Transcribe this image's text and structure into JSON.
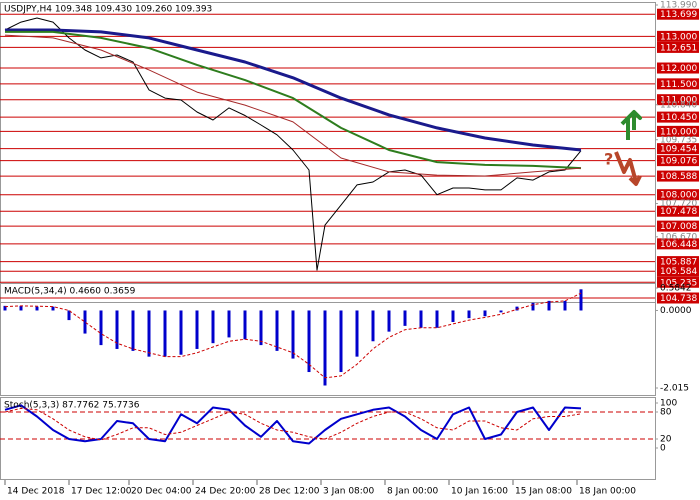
{
  "chart_data": [
    {
      "type": "line",
      "title": "USDJPY,H4 109.348 109.430 109.260 109.393",
      "xlim": [
        -1.25,
        162.5
      ],
      "ylim": [
        104.738,
        113.99
      ],
      "yticks": [
        {
          "value": 113.99,
          "label": "113.990"
        },
        {
          "value": 110.84,
          "label": "110.840"
        },
        109.735,
        {
          "value": 107.72,
          "label": "107.720"
        },
        {
          "value": 106.67,
          "label": "106.670"
        }
      ],
      "levels": [
        113.699,
        {
          "value": 113,
          "label": "113.000"
        },
        112.651,
        {
          "value": 112,
          "label": "112.000"
        },
        {
          "value": 111.5,
          "label": "111.500"
        },
        {
          "value": 111,
          "label": "111.000"
        },
        {
          "value": 110.45,
          "label": "110.450"
        },
        {
          "value": 110,
          "label": "110.000"
        },
        109.454,
        109.076,
        108.588,
        {
          "value": 108,
          "label": "108.000"
        },
        107.478,
        107.008,
        106.448,
        105.887,
        105.584,
        105.235,
        104.738
      ],
      "level_color": "#cc0000",
      "series": [
        {
          "type": "line",
          "color": "#000000",
          "width": 1,
          "x": [
            0,
            4,
            8,
            12,
            16,
            20,
            24,
            28,
            32,
            36,
            40,
            44,
            48,
            52,
            56,
            60,
            64,
            68,
            72,
            76,
            78,
            80,
            84,
            88,
            92,
            96,
            100,
            104,
            108,
            112,
            116,
            120,
            124,
            128,
            132,
            136,
            140,
            144
          ],
          "values": [
            113.2,
            113.45,
            113.58,
            113.45,
            112.95,
            112.57,
            112.32,
            112.41,
            112.19,
            111.31,
            111.05,
            110.99,
            110.61,
            110.36,
            110.74,
            110.5,
            110.2,
            109.89,
            109.41,
            108.78,
            105.62,
            107.04,
            107.67,
            108.31,
            108.4,
            108.72,
            108.78,
            108.62,
            108.0,
            108.21,
            108.21,
            108.15,
            108.15,
            108.53,
            108.46,
            108.72,
            108.78,
            109.39
          ]
        },
        {
          "type": "line",
          "color": "#1a1a8c",
          "width": 3,
          "x": [
            0,
            12,
            24,
            36,
            48,
            60,
            72,
            84,
            96,
            108,
            120,
            132,
            144
          ],
          "values": [
            113.2,
            113.2,
            113.14,
            112.95,
            112.57,
            112.19,
            111.69,
            111.05,
            110.52,
            110.11,
            109.79,
            109.57,
            109.41
          ]
        },
        {
          "type": "line",
          "color": "#2e7d1e",
          "width": 2,
          "x": [
            0,
            12,
            24,
            36,
            48,
            60,
            72,
            84,
            96,
            108,
            120,
            132,
            144
          ],
          "values": [
            113.14,
            113.14,
            112.95,
            112.63,
            112.1,
            111.62,
            111.05,
            110.11,
            109.41,
            109.03,
            108.94,
            108.91,
            108.84
          ]
        },
        {
          "type": "line",
          "color": "#a52a2a",
          "width": 1,
          "x": [
            0,
            12,
            24,
            36,
            48,
            60,
            72,
            84,
            96,
            108,
            120,
            132,
            144
          ],
          "values": [
            113.04,
            112.95,
            112.57,
            111.94,
            111.24,
            110.83,
            110.3,
            109.16,
            108.72,
            108.62,
            108.59,
            108.72,
            108.84
          ]
        }
      ]
    },
    {
      "type": "bar",
      "title": "MACD(5,34,4) 0.4660 0.3659",
      "ylim": [
        -2.015,
        0.5842
      ],
      "yticks": [
        0.5842,
        {
          "value": 0,
          "label": "0.0000"
        },
        -2.015
      ],
      "series": [
        {
          "type": "bar",
          "color": "#0000cc",
          "x": [
            0,
            4,
            8,
            12,
            16,
            20,
            24,
            28,
            32,
            36,
            40,
            44,
            48,
            52,
            56,
            60,
            64,
            68,
            72,
            76,
            80,
            84,
            88,
            92,
            96,
            100,
            104,
            108,
            112,
            116,
            120,
            124,
            128,
            132,
            136,
            140,
            144
          ],
          "values": [
            0.12,
            0.12,
            0.1,
            0.1,
            -0.25,
            -0.6,
            -0.9,
            -1.0,
            -1.05,
            -1.2,
            -1.2,
            -1.15,
            -1.0,
            -0.85,
            -0.7,
            -0.75,
            -0.9,
            -1.05,
            -1.25,
            -1.6,
            -1.95,
            -1.6,
            -1.2,
            -0.8,
            -0.55,
            -0.4,
            -0.45,
            -0.45,
            -0.3,
            -0.2,
            -0.15,
            -0.05,
            0.1,
            0.2,
            0.25,
            0.25,
            0.55
          ]
        },
        {
          "type": "line",
          "color": "#cc0000",
          "width": 1,
          "dashed": true,
          "x": [
            0,
            4,
            8,
            12,
            16,
            20,
            24,
            28,
            32,
            36,
            40,
            44,
            48,
            52,
            56,
            60,
            64,
            68,
            72,
            76,
            80,
            84,
            88,
            92,
            96,
            100,
            104,
            108,
            112,
            116,
            120,
            124,
            128,
            132,
            136,
            140,
            144
          ],
          "values": [
            0.1,
            0.12,
            0.11,
            0.1,
            0.0,
            -0.3,
            -0.6,
            -0.85,
            -1.0,
            -1.1,
            -1.2,
            -1.2,
            -1.1,
            -0.95,
            -0.8,
            -0.75,
            -0.8,
            -0.95,
            -1.1,
            -1.4,
            -1.75,
            -1.7,
            -1.4,
            -1.0,
            -0.7,
            -0.5,
            -0.45,
            -0.45,
            -0.35,
            -0.25,
            -0.18,
            -0.1,
            0.03,
            0.15,
            0.22,
            0.25,
            0.45
          ]
        }
      ]
    },
    {
      "type": "line",
      "title": "Stoch(5,3,3) 87.7762 75.7736",
      "ylim": [
        0,
        100
      ],
      "yticks": [
        100,
        80,
        20,
        0
      ],
      "levels": [
        80,
        20
      ],
      "level_color": "#cc0000",
      "xticks": [
        {
          "value": 0,
          "label": "14 Dec 2018"
        },
        {
          "value": 16,
          "label": "17 Dec 12:00"
        },
        {
          "value": 31,
          "label": "20 Dec 04:00"
        },
        {
          "value": 47,
          "label": "24 Dec 20:00"
        },
        {
          "value": 63,
          "label": "28 Dec 12:00"
        },
        {
          "value": 79,
          "label": "3 Jan 08:00"
        },
        {
          "value": 95,
          "label": "8 Jan 00:00"
        },
        {
          "value": 111,
          "label": "10 Jan 16:00"
        },
        {
          "value": 127,
          "label": "15 Jan 08:00"
        },
        {
          "value": 143,
          "label": "18 Jan 00:00"
        }
      ],
      "series": [
        {
          "type": "line",
          "color": "#0000cc",
          "width": 2,
          "x": [
            0,
            4,
            8,
            12,
            16,
            20,
            24,
            28,
            32,
            36,
            40,
            44,
            48,
            52,
            56,
            60,
            64,
            68,
            72,
            76,
            80,
            84,
            88,
            92,
            96,
            100,
            104,
            108,
            112,
            116,
            120,
            124,
            128,
            132,
            136,
            140,
            144
          ],
          "values": [
            85,
            95,
            70,
            40,
            20,
            15,
            20,
            60,
            55,
            20,
            15,
            75,
            55,
            90,
            85,
            50,
            25,
            60,
            15,
            10,
            40,
            65,
            75,
            85,
            90,
            70,
            40,
            20,
            75,
            90,
            20,
            30,
            80,
            90,
            40,
            90,
            88
          ]
        },
        {
          "type": "line",
          "color": "#cc0000",
          "width": 1,
          "dashed": true,
          "x": [
            0,
            4,
            8,
            12,
            16,
            20,
            24,
            28,
            32,
            36,
            40,
            44,
            48,
            52,
            56,
            60,
            64,
            68,
            72,
            76,
            80,
            84,
            88,
            92,
            96,
            100,
            104,
            108,
            112,
            116,
            120,
            124,
            128,
            132,
            136,
            140,
            144
          ],
          "values": [
            80,
            88,
            85,
            65,
            40,
            25,
            18,
            30,
            45,
            45,
            30,
            35,
            50,
            65,
            80,
            75,
            55,
            40,
            35,
            25,
            20,
            35,
            55,
            70,
            80,
            80,
            65,
            45,
            40,
            60,
            60,
            45,
            40,
            65,
            70,
            70,
            76
          ]
        }
      ]
    }
  ]
}
